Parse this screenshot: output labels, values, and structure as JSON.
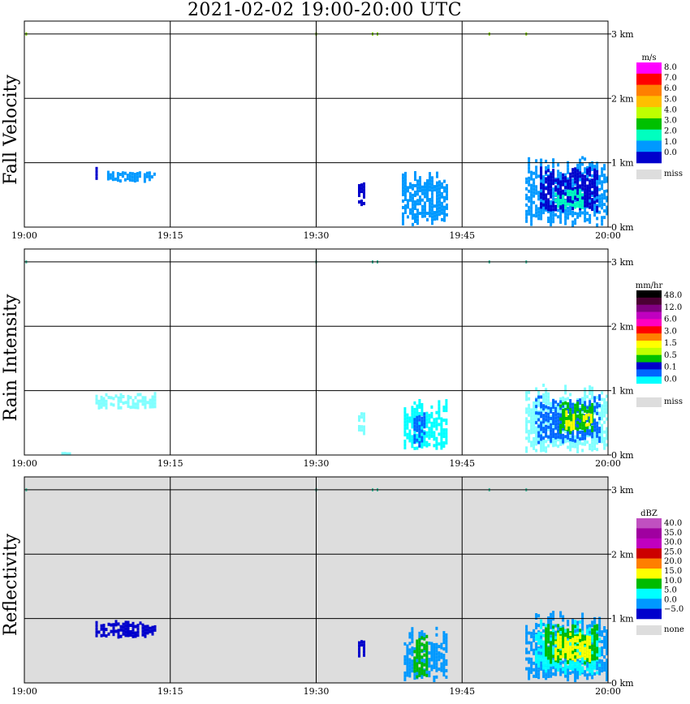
{
  "title": "2021-02-02   19:00-20:00 UTC",
  "chart_data": [
    {
      "type": "heatmap",
      "ylabel": "Fall Velocity",
      "x_ticks": [
        "19:00",
        "19:15",
        "19:30",
        "19:45",
        "20:00"
      ],
      "y_ticks": [
        "0 km",
        "1 km",
        "2 km",
        "3 km"
      ],
      "xlim": [
        "19:00",
        "20:00"
      ],
      "ylim_km": [
        0,
        3.5
      ],
      "grid": true,
      "background": "#ffffff",
      "legend": {
        "unit": "m/s",
        "labels": [
          "8.0",
          "7.0",
          "6.0",
          "5.0",
          "4.0",
          "3.0",
          "2.0",
          "1.0",
          "0.0"
        ],
        "colors": [
          "#ff00ff",
          "#ff0000",
          "#ff7f00",
          "#ffbf00",
          "#bfff00",
          "#00c000",
          "#00ffbf",
          "#0099ff",
          "#0000cc"
        ],
        "miss_label": "miss",
        "miss_color": "#dddddd"
      },
      "echoes": [
        {
          "t0": 7.3,
          "t1": 7.5,
          "h0": 0.72,
          "h1": 0.98,
          "color": "#0000cc"
        },
        {
          "t0": 8.5,
          "t1": 13.5,
          "h0": 0.72,
          "h1": 0.88,
          "color": "#0099ff"
        },
        {
          "t0": 34.3,
          "t1": 35.0,
          "h0": 0.35,
          "h1": 0.7,
          "color": "#0000cc"
        },
        {
          "t0": 38.8,
          "t1": 43.5,
          "h0": 0.05,
          "h1": 0.88,
          "color": "#0099ff"
        },
        {
          "t0": 51.5,
          "t1": 59.8,
          "h0": 0.05,
          "h1": 1.12,
          "color": "#0099ff"
        },
        {
          "t0": 53.0,
          "t1": 59.0,
          "h0": 0.25,
          "h1": 0.95,
          "color": "#0000cc"
        },
        {
          "t0": 54.5,
          "t1": 57.5,
          "h0": 0.3,
          "h1": 0.6,
          "color": "#00ffbf"
        }
      ],
      "specks": [
        0.2,
        30.0,
        35.8,
        36.3,
        47.8,
        51.6
      ]
    },
    {
      "type": "heatmap",
      "ylabel": "Rain Intensity",
      "x_ticks": [
        "19:00",
        "19:15",
        "19:30",
        "19:45",
        "20:00"
      ],
      "y_ticks": [
        "0 km",
        "1 km",
        "2 km",
        "3 km"
      ],
      "xlim": [
        "19:00",
        "20:00"
      ],
      "ylim_km": [
        0,
        3.5
      ],
      "grid": true,
      "background": "#ffffff",
      "legend": {
        "unit": "mm/hr",
        "labels": [
          "48.0",
          "12.0",
          "6.0",
          "3.0",
          "1.5",
          "0.5",
          "0.1",
          "0.0"
        ],
        "colors": [
          "#000000",
          "#4b0033",
          "#800080",
          "#c000c0",
          "#ff00c0",
          "#ff0000",
          "#ff7f00",
          "#ffff00",
          "#bfff00",
          "#00c000",
          "#0000cc",
          "#0066ff",
          "#00ffff",
          "#ffffff"
        ],
        "miss_label": "miss",
        "miss_color": "#dddddd"
      },
      "echoes": [
        {
          "t0": 7.3,
          "t1": 13.5,
          "h0": 0.72,
          "h1": 0.98,
          "color": "#80ffff"
        },
        {
          "t0": 3.8,
          "t1": 4.6,
          "h0": 0.0,
          "h1": 0.05,
          "color": "#80ffff"
        },
        {
          "t0": 34.3,
          "t1": 35.0,
          "h0": 0.35,
          "h1": 0.7,
          "color": "#80ffff"
        },
        {
          "t0": 39.0,
          "t1": 43.5,
          "h0": 0.05,
          "h1": 0.88,
          "color": "#00ffff"
        },
        {
          "t0": 40.0,
          "t1": 41.2,
          "h0": 0.15,
          "h1": 0.75,
          "color": "#0066ff"
        },
        {
          "t0": 51.5,
          "t1": 59.8,
          "h0": 0.05,
          "h1": 1.12,
          "color": "#80ffff"
        },
        {
          "t0": 52.5,
          "t1": 59.2,
          "h0": 0.2,
          "h1": 0.95,
          "color": "#0066ff"
        },
        {
          "t0": 55.0,
          "t1": 58.5,
          "h0": 0.35,
          "h1": 0.85,
          "color": "#00c000"
        },
        {
          "t0": 55.6,
          "t1": 56.4,
          "h0": 0.4,
          "h1": 0.7,
          "color": "#ffff00"
        },
        {
          "t0": 57.4,
          "t1": 58.2,
          "h0": 0.45,
          "h1": 0.75,
          "color": "#ffff00"
        }
      ],
      "specks": [
        0.2,
        30.0,
        35.8,
        36.3,
        47.8,
        51.6
      ]
    },
    {
      "type": "heatmap",
      "ylabel": "Reflectivity",
      "x_ticks": [
        "19:00",
        "19:15",
        "19:30",
        "19:45",
        "20:00"
      ],
      "y_ticks": [
        "0 km",
        "1 km",
        "2 km",
        "3 km"
      ],
      "xlim": [
        "19:00",
        "20:00"
      ],
      "ylim_km": [
        0,
        3.5
      ],
      "grid": true,
      "background": "#dddddd",
      "legend": {
        "unit": "dBZ",
        "labels": [
          "40.0",
          "35.0",
          "30.0",
          "25.0",
          "20.0",
          "15.0",
          "10.0",
          "5.0",
          "0.0",
          "−5.0"
        ],
        "colors": [
          "#c050c0",
          "#a000a0",
          "#c000c0",
          "#cc0000",
          "#ff7f00",
          "#ffff00",
          "#00bb00",
          "#00ffff",
          "#0099ff",
          "#0000cc"
        ],
        "miss_label": "none",
        "miss_color": "#dddddd"
      },
      "echoes": [
        {
          "t0": 7.3,
          "t1": 13.5,
          "h0": 0.72,
          "h1": 0.98,
          "color": "#0000cc"
        },
        {
          "t0": 34.3,
          "t1": 35.0,
          "h0": 0.35,
          "h1": 0.7,
          "color": "#0000cc"
        },
        {
          "t0": 39.0,
          "t1": 43.5,
          "h0": 0.05,
          "h1": 0.88,
          "color": "#0099ff"
        },
        {
          "t0": 40.0,
          "t1": 41.3,
          "h0": 0.1,
          "h1": 0.75,
          "color": "#00bb00"
        },
        {
          "t0": 51.5,
          "t1": 59.8,
          "h0": 0.05,
          "h1": 1.12,
          "color": "#0099ff"
        },
        {
          "t0": 52.5,
          "t1": 59.2,
          "h0": 0.15,
          "h1": 1.0,
          "color": "#00ffff"
        },
        {
          "t0": 53.5,
          "t1": 58.8,
          "h0": 0.3,
          "h1": 0.92,
          "color": "#00bb00"
        },
        {
          "t0": 54.5,
          "t1": 58.2,
          "h0": 0.35,
          "h1": 0.8,
          "color": "#ffff00"
        }
      ],
      "specks": [
        0.2,
        30.0,
        35.8,
        36.3,
        47.8,
        51.6
      ]
    }
  ]
}
